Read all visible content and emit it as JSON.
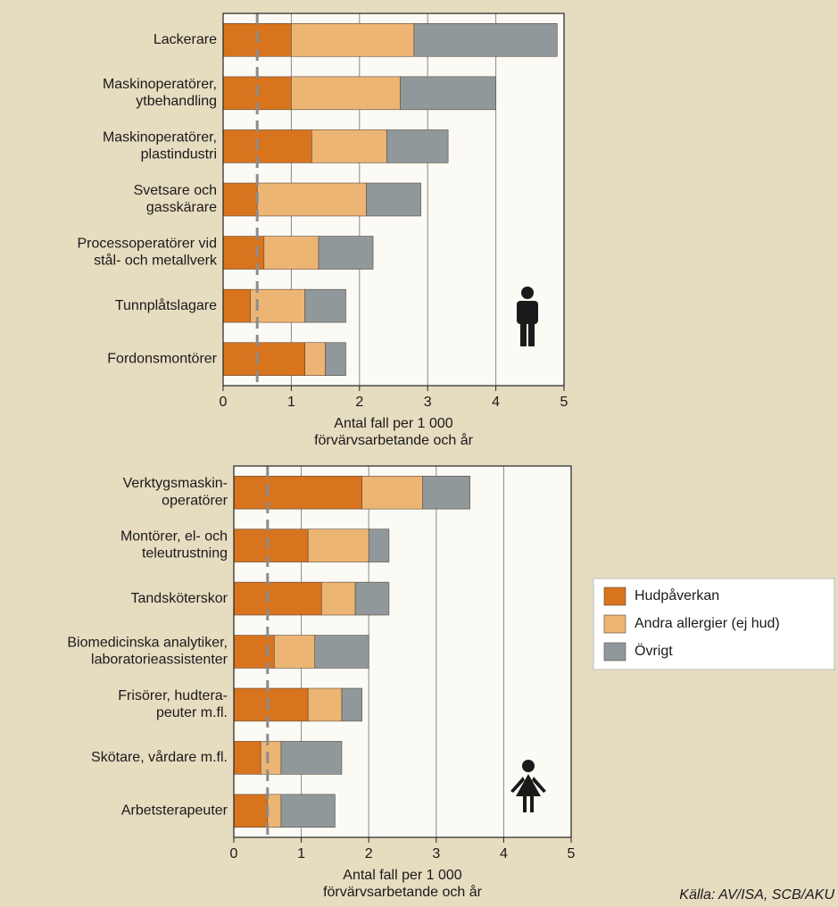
{
  "chart_data": [
    {
      "type": "bar",
      "stacked": true,
      "orientation": "horizontal",
      "categories": [
        "Lackerare",
        "Maskinoperatörer,\nytbehandling",
        "Maskinoperatörer,\nplastindustri",
        "Svetsare och\ngasskärare",
        "Processoperatörer vid\nstål- och metallverk",
        "Tunnplåtslagare",
        "Fordonsmontörer"
      ],
      "series": [
        {
          "color": "#d8731e",
          "values": [
            1.0,
            1.0,
            1.3,
            0.5,
            0.6,
            0.4,
            1.2
          ]
        },
        {
          "color": "#edb574",
          "values": [
            1.8,
            1.6,
            1.1,
            1.6,
            0.8,
            0.8,
            0.3
          ]
        },
        {
          "color": "#90989b",
          "values": [
            2.1,
            1.4,
            0.9,
            0.8,
            0.8,
            0.6,
            0.3
          ]
        }
      ],
      "xlim": [
        0,
        5
      ],
      "xticks": [
        0,
        1,
        2,
        3,
        4,
        5
      ],
      "grid": true,
      "reference_line": 0.5,
      "x_label": "Antal fall per 1 000\nförvärvsarbetande och år"
    },
    {
      "type": "bar",
      "stacked": true,
      "orientation": "horizontal",
      "categories": [
        "Verktygsmaskin-\noperatörer",
        "Montörer, el- och\nteleutrustning",
        "Tandsköterskor",
        "Biomedicinska analytiker,\nlaboratorieassistenter",
        "Frisörer, hudtera-\npeuter m.fl.",
        "Skötare, vårdare m.fl.",
        "Arbetsterapeuter"
      ],
      "series": [
        {
          "name": "Hudpåverkan",
          "color": "#d8731e",
          "values": [
            1.9,
            1.1,
            1.3,
            0.6,
            1.1,
            0.4,
            0.5
          ]
        },
        {
          "name": "Andra allergier (ej hud)",
          "color": "#edb574",
          "values": [
            0.9,
            0.9,
            0.5,
            0.6,
            0.5,
            0.3,
            0.2
          ]
        },
        {
          "name": "Övrigt",
          "color": "#90989b",
          "values": [
            0.7,
            0.3,
            0.5,
            0.8,
            0.3,
            0.9,
            0.8
          ]
        }
      ],
      "xlim": [
        0,
        5
      ],
      "xticks": [
        0,
        1,
        2,
        3,
        4,
        5
      ],
      "grid": true,
      "reference_line": 0.5,
      "x_label": "Antal fall per 1 000\nförvärvsarbetande och år",
      "legend": "right",
      "source": "Källa: AV/ISA, SCB/AKU"
    }
  ]
}
